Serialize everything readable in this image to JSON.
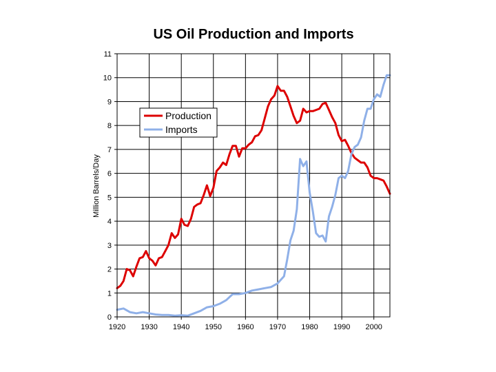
{
  "chart_data": {
    "type": "line",
    "title": "US Oil Production and Imports",
    "xlabel": "",
    "ylabel": "Million Barrels/Day",
    "xlim": [
      1920,
      2005
    ],
    "ylim": [
      0,
      11
    ],
    "x_ticks": [
      1920,
      1930,
      1940,
      1950,
      1960,
      1970,
      1980,
      1990,
      2000
    ],
    "y_ticks": [
      0,
      1,
      2,
      3,
      4,
      5,
      6,
      7,
      8,
      9,
      10,
      11
    ],
    "grid": true,
    "legend_position": "upper-left",
    "colors": {
      "production": "#dd0000",
      "imports": "#8fb0e8"
    },
    "series": [
      {
        "name": "Production",
        "x": [
          1920,
          1921,
          1922,
          1923,
          1924,
          1925,
          1926,
          1927,
          1928,
          1929,
          1930,
          1931,
          1932,
          1933,
          1934,
          1935,
          1936,
          1937,
          1938,
          1939,
          1940,
          1941,
          1942,
          1943,
          1944,
          1945,
          1946,
          1947,
          1948,
          1949,
          1950,
          1951,
          1952,
          1953,
          1954,
          1955,
          1956,
          1957,
          1958,
          1959,
          1960,
          1961,
          1962,
          1963,
          1964,
          1965,
          1966,
          1967,
          1968,
          1969,
          1970,
          1971,
          1972,
          1973,
          1974,
          1975,
          1976,
          1977,
          1978,
          1979,
          1980,
          1981,
          1982,
          1983,
          1984,
          1985,
          1986,
          1987,
          1988,
          1989,
          1990,
          1991,
          1992,
          1993,
          1994,
          1995,
          1996,
          1997,
          1998,
          1999,
          2000,
          2001,
          2002,
          2003,
          2004,
          2005
        ],
        "values": [
          1.2,
          1.3,
          1.5,
          2.0,
          1.95,
          1.7,
          2.1,
          2.45,
          2.5,
          2.75,
          2.45,
          2.35,
          2.15,
          2.45,
          2.5,
          2.75,
          3.0,
          3.5,
          3.3,
          3.45,
          4.1,
          3.85,
          3.8,
          4.1,
          4.6,
          4.7,
          4.75,
          5.1,
          5.5,
          5.05,
          5.4,
          6.1,
          6.25,
          6.45,
          6.35,
          6.8,
          7.15,
          7.15,
          6.7,
          7.05,
          7.05,
          7.2,
          7.3,
          7.55,
          7.6,
          7.8,
          8.3,
          8.8,
          9.1,
          9.25,
          9.65,
          9.45,
          9.45,
          9.2,
          8.8,
          8.4,
          8.1,
          8.2,
          8.7,
          8.55,
          8.6,
          8.6,
          8.65,
          8.7,
          8.9,
          8.95,
          8.65,
          8.35,
          8.1,
          7.6,
          7.35,
          7.4,
          7.15,
          6.85,
          6.65,
          6.55,
          6.45,
          6.45,
          6.25,
          5.9,
          5.8,
          5.8,
          5.75,
          5.7,
          5.45,
          5.15
        ]
      },
      {
        "name": "Imports",
        "x": [
          1920,
          1922,
          1924,
          1926,
          1928,
          1930,
          1932,
          1934,
          1936,
          1938,
          1940,
          1942,
          1944,
          1946,
          1948,
          1950,
          1952,
          1954,
          1956,
          1958,
          1960,
          1962,
          1964,
          1966,
          1968,
          1970,
          1972,
          1973,
          1974,
          1975,
          1976,
          1977,
          1978,
          1979,
          1980,
          1981,
          1982,
          1983,
          1984,
          1985,
          1986,
          1987,
          1988,
          1989,
          1990,
          1991,
          1992,
          1993,
          1994,
          1995,
          1996,
          1997,
          1998,
          1999,
          2000,
          2001,
          2002,
          2003,
          2004,
          2005
        ],
        "values": [
          0.3,
          0.35,
          0.2,
          0.15,
          0.2,
          0.15,
          0.1,
          0.08,
          0.08,
          0.05,
          0.07,
          0.05,
          0.15,
          0.25,
          0.4,
          0.45,
          0.55,
          0.7,
          0.95,
          0.95,
          1.0,
          1.1,
          1.15,
          1.2,
          1.25,
          1.4,
          1.7,
          2.4,
          3.2,
          3.6,
          4.5,
          6.6,
          6.3,
          6.5,
          5.2,
          4.4,
          3.5,
          3.35,
          3.4,
          3.15,
          4.2,
          4.6,
          5.1,
          5.8,
          5.9,
          5.8,
          6.1,
          6.8,
          7.1,
          7.2,
          7.5,
          8.2,
          8.7,
          8.7,
          9.1,
          9.3,
          9.2,
          9.7,
          10.1,
          10.1
        ]
      }
    ]
  }
}
